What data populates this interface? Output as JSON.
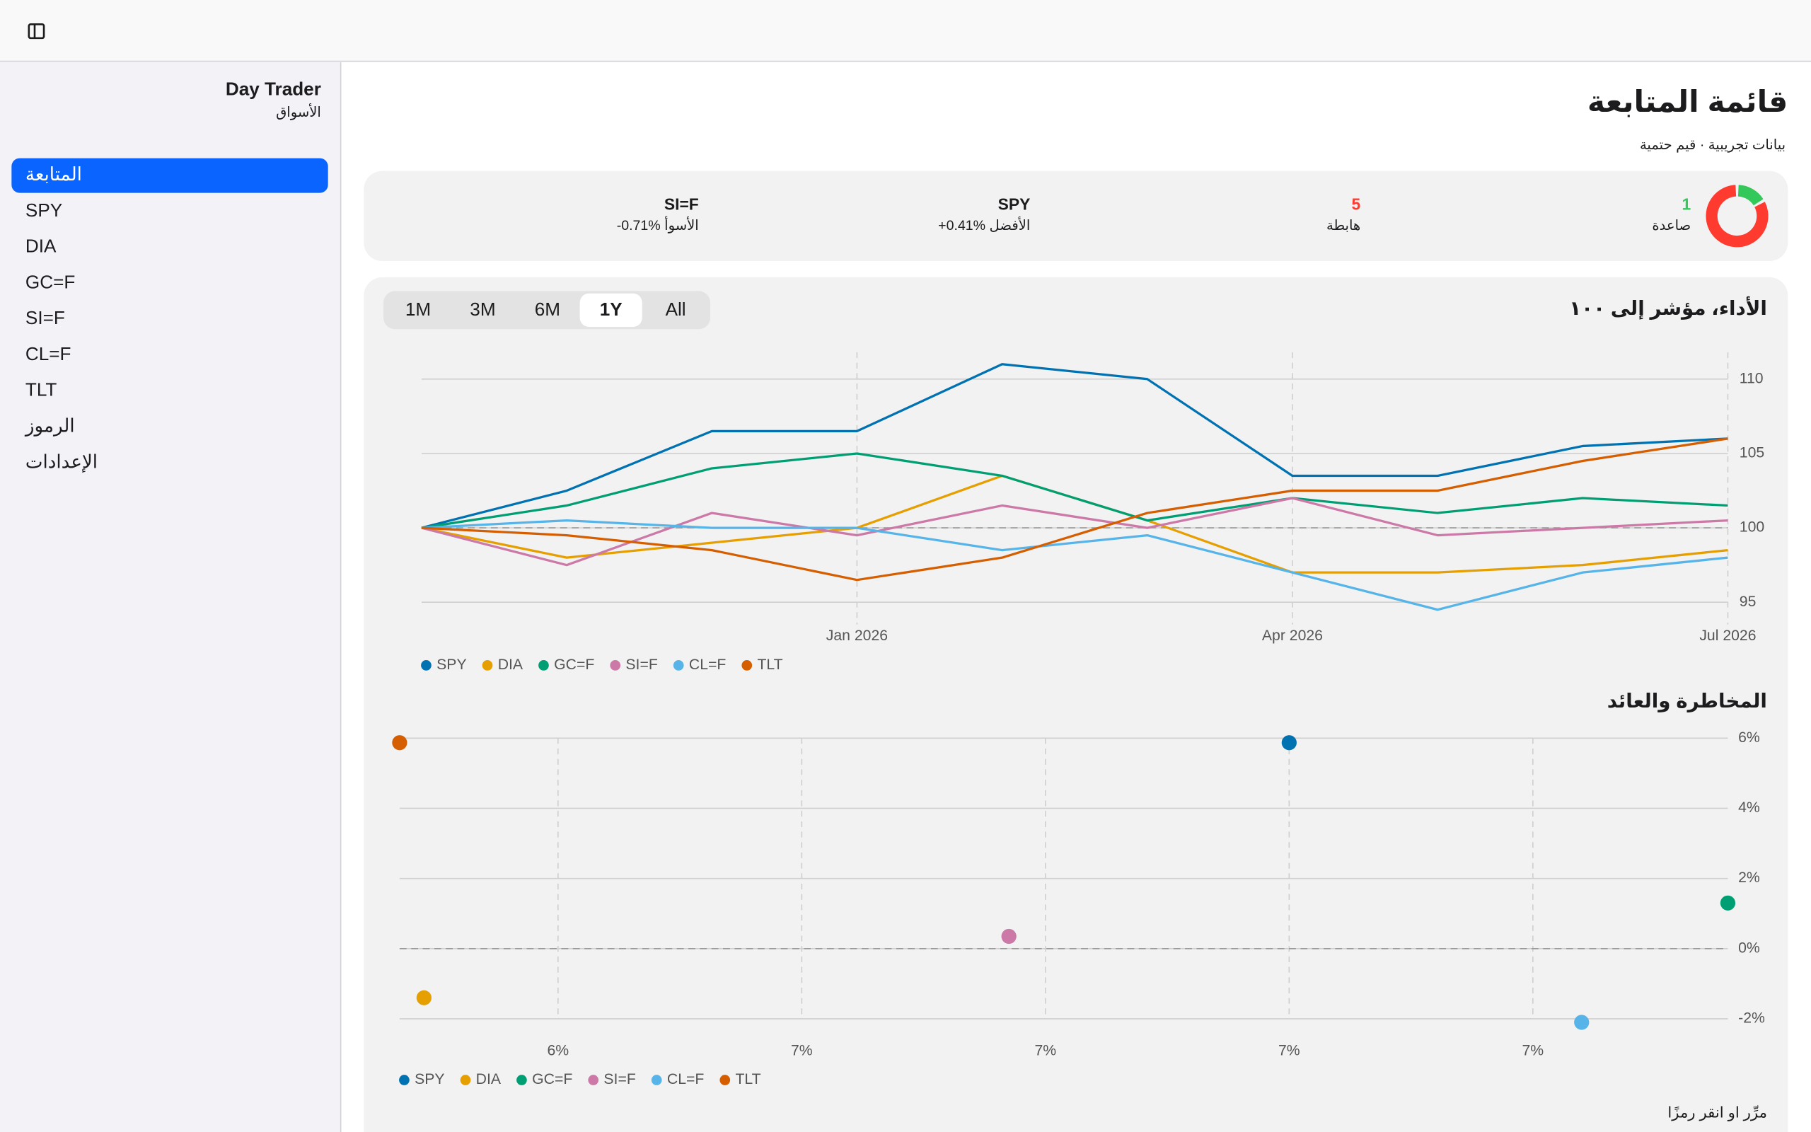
{
  "sidebar": {
    "title": "Day Trader",
    "subtitle": "الأسواق",
    "active": 0,
    "items": [
      "المتابعة",
      "SPY",
      "DIA",
      "GC=F",
      "SI=F",
      "CL=F",
      "TLT",
      "الرموز",
      "الإعدادات"
    ]
  },
  "header": {
    "title": "قائمة المتابعة",
    "subtitle": "بيانات تجريبية · قيم حتمية"
  },
  "summary": {
    "up": {
      "value": 1,
      "label": "صاعدة",
      "color": "#34c759"
    },
    "down": {
      "value": 5,
      "label": "هابطة",
      "color": "#ff3b30"
    },
    "best": {
      "symbol": "SPY",
      "text": "+0.41% الأفضل"
    },
    "worst": {
      "symbol": "SI=F",
      "text": "-0.71% الأسوأ"
    }
  },
  "ranges": [
    "1M",
    "3M",
    "6M",
    "1Y",
    "All"
  ],
  "selected_range": 3,
  "hint": "مرِّر او انقر رمزًا",
  "chart_data": [
    {
      "type": "line",
      "title": "الأداء، مؤشر إلى ١٠٠",
      "x": [
        "Oct 2025",
        "Nov 2025",
        "Dec 2025",
        "Jan 2026",
        "Feb 2026",
        "Mar 2026",
        "Apr 2026",
        "May 2026",
        "Jun 2026",
        "Jul 2026"
      ],
      "xticks": [
        "Jan 2026",
        "Apr 2026",
        "Jul 2026"
      ],
      "ylim": [
        93.5,
        111.8
      ],
      "yticks": [
        95,
        100,
        105,
        110
      ],
      "reference_line": 100,
      "grid": true,
      "series": [
        {
          "name": "SPY",
          "color": "#0072b2",
          "values": [
            100,
            102.5,
            106.5,
            106.5,
            111,
            110,
            103.5,
            103.5,
            105.5,
            106
          ]
        },
        {
          "name": "DIA",
          "color": "#e69f00",
          "values": [
            100,
            98,
            99,
            100,
            103.5,
            100.5,
            97,
            97,
            97.5,
            98.5
          ]
        },
        {
          "name": "GC=F",
          "color": "#009e73",
          "values": [
            100,
            101.5,
            104,
            105,
            103.5,
            100.5,
            102,
            101,
            102,
            101.5
          ]
        },
        {
          "name": "SI=F",
          "color": "#cc79a7",
          "values": [
            100,
            97.5,
            101,
            99.5,
            101.5,
            100,
            102,
            99.5,
            100,
            100.5
          ]
        },
        {
          "name": "CL=F",
          "color": "#56b4e9",
          "values": [
            100,
            100.5,
            100,
            100,
            98.5,
            99.5,
            97,
            94.5,
            97,
            98
          ]
        },
        {
          "name": "TLT",
          "color": "#d55e00",
          "values": [
            100,
            99.5,
            98.5,
            96.5,
            98,
            101,
            102.5,
            102.5,
            104.5,
            106
          ]
        }
      ]
    },
    {
      "type": "scatter",
      "title": "المخاطرة والعائد",
      "xlim": [
        6.27,
        7.36
      ],
      "xticks": [
        {
          "value": 6.4,
          "label": "6%"
        },
        {
          "value": 6.6,
          "label": "7%"
        },
        {
          "value": 6.8,
          "label": "7%"
        },
        {
          "value": 7.0,
          "label": "7%"
        },
        {
          "value": 7.2,
          "label": "7%"
        }
      ],
      "ylim": [
        -2,
        6
      ],
      "yticks": [
        {
          "value": 6,
          "label": "6%"
        },
        {
          "value": 4,
          "label": "4%"
        },
        {
          "value": 2,
          "label": "2%"
        },
        {
          "value": 0,
          "label": "0%"
        },
        {
          "value": -2,
          "label": "-2%"
        }
      ],
      "reference_line": 0,
      "grid": true,
      "series": [
        {
          "name": "SPY",
          "color": "#0072b2",
          "x": [
            7.0
          ],
          "values": [
            5.87
          ]
        },
        {
          "name": "DIA",
          "color": "#e69f00",
          "x": [
            6.29
          ],
          "values": [
            -1.4
          ]
        },
        {
          "name": "GC=F",
          "color": "#009e73",
          "x": [
            7.36
          ],
          "values": [
            1.3
          ]
        },
        {
          "name": "SI=F",
          "color": "#cc79a7",
          "x": [
            6.77
          ],
          "values": [
            0.35
          ]
        },
        {
          "name": "CL=F",
          "color": "#56b4e9",
          "x": [
            7.24
          ],
          "values": [
            -2.1
          ]
        },
        {
          "name": "TLT",
          "color": "#d55e00",
          "x": [
            6.27
          ],
          "values": [
            5.87
          ]
        }
      ]
    }
  ]
}
